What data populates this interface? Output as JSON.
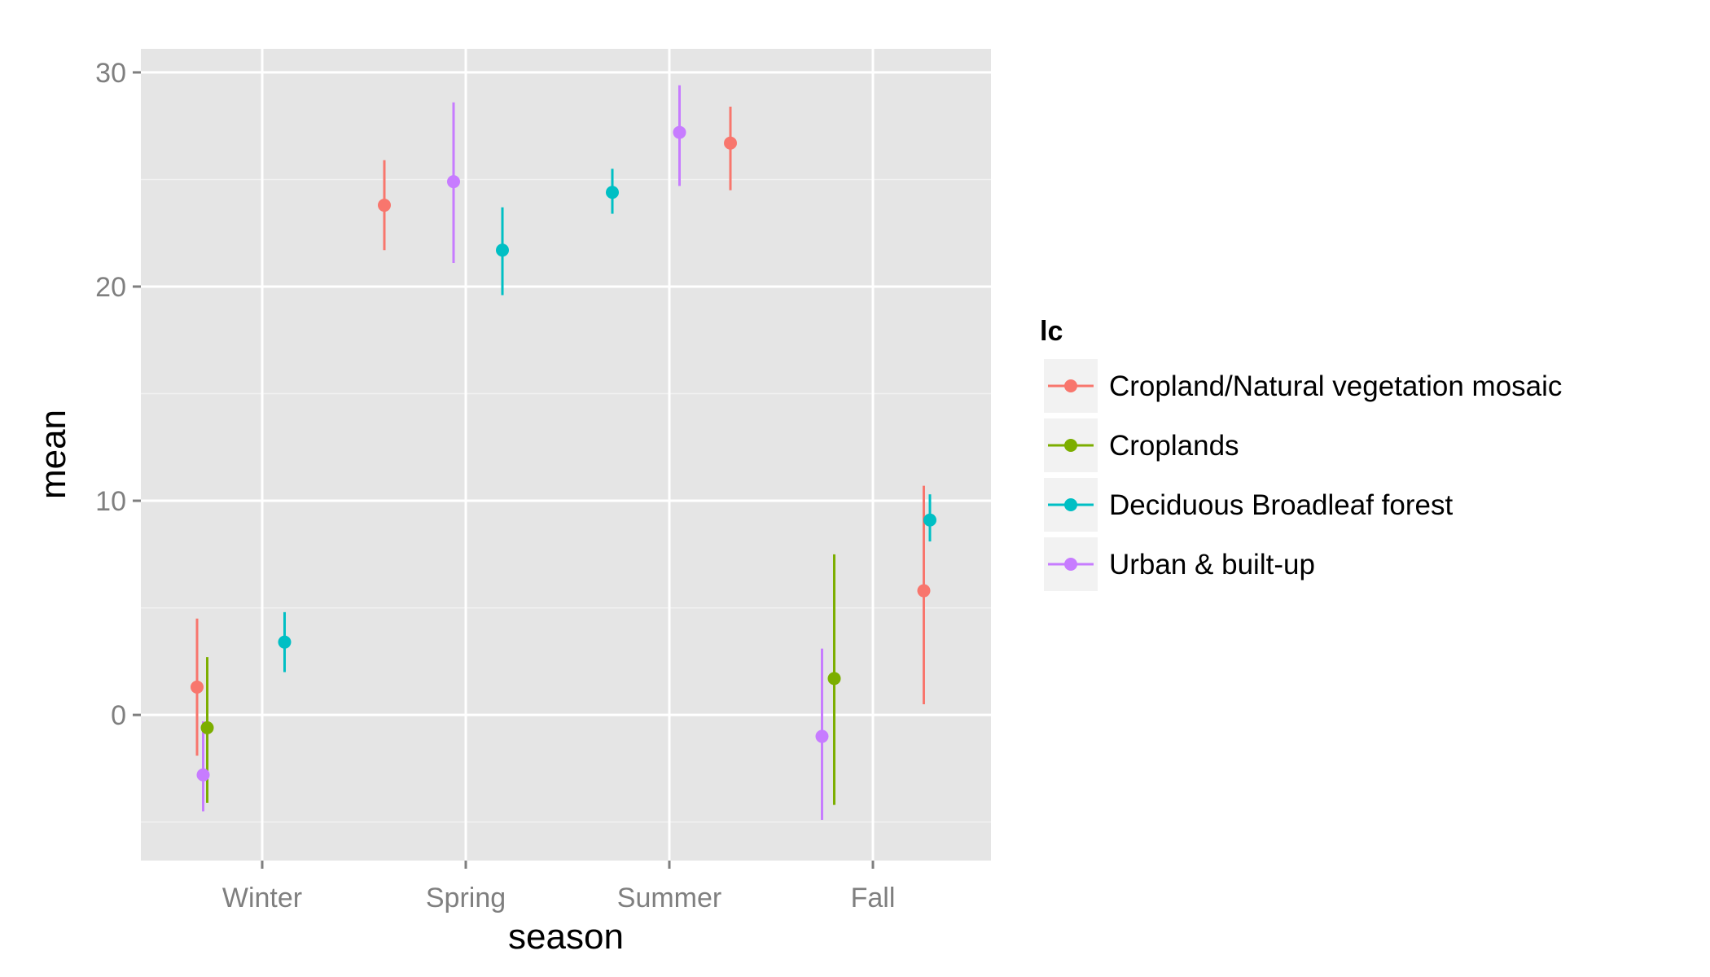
{
  "chart_data": {
    "type": "scatter",
    "xlabel": "season",
    "ylabel": "mean",
    "categories": [
      "Winter",
      "Spring",
      "Summer",
      "Fall"
    ],
    "ylim": [
      -6.8,
      31.1
    ],
    "yticks": [
      0,
      10,
      20,
      30
    ],
    "grid": true,
    "legend": {
      "title": "lc",
      "placement": "right"
    },
    "series": [
      {
        "name": "Cropland/Natural vegetation mosaic",
        "color": "#F8766D",
        "points": [
          {
            "season": "Winter",
            "offset": -0.32,
            "mean": 1.3,
            "low": -1.9,
            "high": 4.5
          },
          {
            "season": "Spring",
            "offset": -0.4,
            "mean": 23.8,
            "low": 21.7,
            "high": 25.9
          },
          {
            "season": "Summer",
            "offset": 0.3,
            "mean": 26.7,
            "low": 24.5,
            "high": 28.4
          },
          {
            "season": "Fall",
            "offset": 0.25,
            "mean": 5.8,
            "low": 0.5,
            "high": 10.7
          }
        ]
      },
      {
        "name": "Croplands",
        "color": "#7CAE00",
        "points": [
          {
            "season": "Winter",
            "offset": -0.27,
            "mean": -0.6,
            "low": -4.1,
            "high": 2.7
          },
          {
            "season": "Fall",
            "offset": -0.19,
            "mean": 1.7,
            "low": -4.2,
            "high": 7.5
          }
        ]
      },
      {
        "name": "Deciduous Broadleaf forest",
        "color": "#00BFC4",
        "points": [
          {
            "season": "Winter",
            "offset": 0.11,
            "mean": 3.4,
            "low": 2.0,
            "high": 4.8
          },
          {
            "season": "Spring",
            "offset": 0.18,
            "mean": 21.7,
            "low": 19.6,
            "high": 23.7
          },
          {
            "season": "Summer",
            "offset": -0.28,
            "mean": 24.4,
            "low": 23.4,
            "high": 25.5
          },
          {
            "season": "Fall",
            "offset": 0.28,
            "mean": 9.1,
            "low": 8.1,
            "high": 10.3
          }
        ]
      },
      {
        "name": "Urban & built-up",
        "color": "#C77CFF",
        "points": [
          {
            "season": "Winter",
            "offset": -0.29,
            "mean": -2.8,
            "low": -4.5,
            "high": -0.3
          },
          {
            "season": "Spring",
            "offset": -0.06,
            "mean": 24.9,
            "low": 21.1,
            "high": 28.6
          },
          {
            "season": "Summer",
            "offset": 0.05,
            "mean": 27.2,
            "low": 24.7,
            "high": 29.4
          },
          {
            "season": "Fall",
            "offset": -0.25,
            "mean": -1.0,
            "low": -4.9,
            "high": 3.1
          }
        ]
      }
    ]
  }
}
